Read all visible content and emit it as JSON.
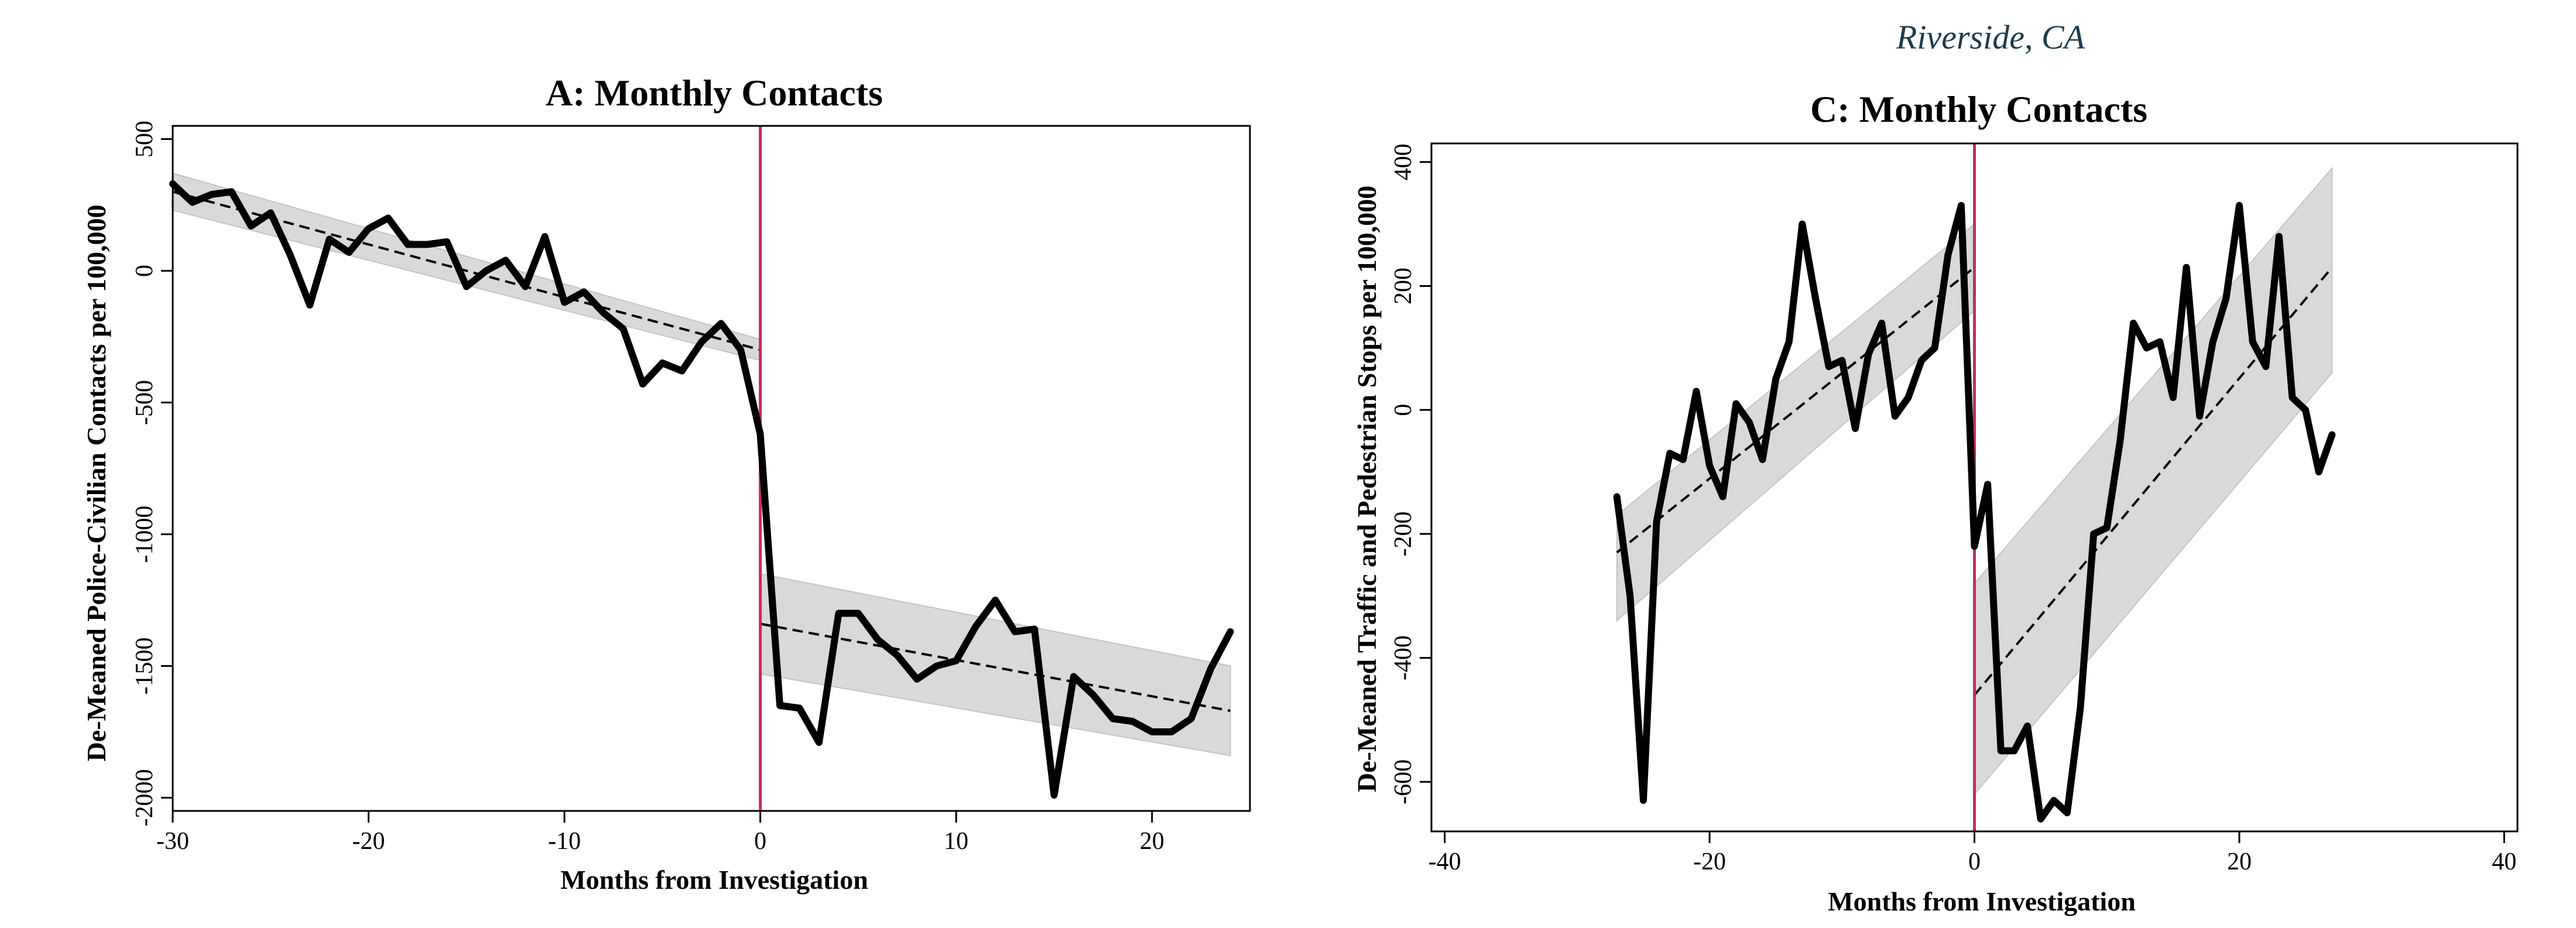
{
  "caption": "Riverside, CA",
  "chart_data": [
    {
      "type": "line",
      "title": "A: Monthly Contacts",
      "xlabel": "Months from Investigation",
      "ylabel": "De-Meaned Police-Civilian Contacts per 100,000",
      "xlim": [
        -30,
        25
      ],
      "ylim": [
        -2050,
        550
      ],
      "xticks": [
        -30,
        -20,
        -10,
        0,
        10,
        20
      ],
      "yticks": [
        500,
        0,
        -500,
        -1000,
        -1500,
        -2000
      ],
      "cutoff_x": 0,
      "colors": {
        "line": "#000000",
        "cutoff": "#c0305a",
        "band": "#d9d9d9"
      },
      "series": [
        {
          "x": [
            -30,
            -29,
            -28,
            -27,
            -26,
            -25,
            -24,
            -23,
            -22,
            -21,
            -20,
            -19,
            -18,
            -17,
            -16,
            -15,
            -14,
            -13,
            -12,
            -11,
            -10,
            -9,
            -8,
            -7,
            -6,
            -5,
            -4,
            -3,
            -2,
            -1,
            0,
            1,
            2,
            3,
            4,
            5,
            6,
            7,
            8,
            9,
            10,
            11,
            12,
            13,
            14,
            15,
            16,
            17,
            18,
            19,
            20,
            21,
            22,
            23,
            24
          ],
          "y": [
            330,
            260,
            290,
            300,
            170,
            220,
            60,
            -130,
            120,
            70,
            160,
            200,
            100,
            100,
            110,
            -60,
            0,
            40,
            -60,
            130,
            -120,
            -80,
            -160,
            -220,
            -430,
            -350,
            -380,
            -270,
            -200,
            -300,
            -620,
            -1650,
            -1660,
            -1790,
            -1300,
            -1300,
            -1400,
            -1460,
            -1550,
            -1500,
            -1480,
            -1350,
            -1250,
            -1370,
            -1360,
            -1990,
            -1540,
            -1610,
            -1700,
            -1710,
            -1750,
            -1750,
            -1700,
            -1510,
            -1370
          ]
        }
      ],
      "fits": [
        {
          "x": [
            -30,
            0
          ],
          "y": [
            300,
            -300
          ],
          "band_upper": [
            370,
            -260
          ],
          "band_lower": [
            230,
            -340
          ]
        },
        {
          "x": [
            0,
            24
          ],
          "y": [
            -1340,
            -1670
          ],
          "band_upper": [
            -1150,
            -1500
          ],
          "band_lower": [
            -1530,
            -1840
          ]
        }
      ]
    },
    {
      "type": "line",
      "title": "C: Monthly Contacts",
      "xlabel": "Months from Investigation",
      "ylabel": "De-Meaned Traffic and Pedestrian Stops per 100,000",
      "xlim": [
        -41,
        41
      ],
      "ylim": [
        -680,
        430
      ],
      "xticks": [
        -40,
        -20,
        0,
        20,
        40
      ],
      "yticks": [
        400,
        200,
        0,
        -200,
        -400,
        -600
      ],
      "cutoff_x": 0,
      "colors": {
        "line": "#000000",
        "cutoff": "#c0305a",
        "band": "#d9d9d9"
      },
      "series": [
        {
          "x": [
            -27,
            -26,
            -25,
            -24,
            -23,
            -22,
            -21,
            -20,
            -19,
            -18,
            -17,
            -16,
            -15,
            -14,
            -13,
            -12,
            -11,
            -10,
            -9,
            -8,
            -7,
            -6,
            -5,
            -4,
            -3,
            -2,
            -1,
            0,
            1,
            2,
            3,
            4,
            5,
            6,
            7,
            8,
            9,
            10,
            11,
            12,
            13,
            14,
            15,
            16,
            17,
            18,
            19,
            20,
            21,
            22,
            23,
            24,
            25,
            26,
            27
          ],
          "y": [
            -140,
            -300,
            -630,
            -180,
            -70,
            -80,
            30,
            -90,
            -140,
            10,
            -20,
            -80,
            50,
            110,
            300,
            180,
            70,
            80,
            -30,
            90,
            140,
            -10,
            20,
            80,
            100,
            250,
            330,
            -220,
            -120,
            -550,
            -550,
            -510,
            -660,
            -630,
            -650,
            -480,
            -200,
            -190,
            -50,
            140,
            100,
            110,
            20,
            230,
            -10,
            110,
            180,
            330,
            110,
            70,
            280,
            20,
            0,
            -100,
            -40
          ]
        }
      ],
      "fits": [
        {
          "x": [
            -27,
            0
          ],
          "y": [
            -230,
            230
          ],
          "band_upper": [
            -170,
            300
          ],
          "band_lower": [
            -340,
            160
          ]
        },
        {
          "x": [
            0,
            27
          ],
          "y": [
            -460,
            230
          ],
          "band_upper": [
            -280,
            390
          ],
          "band_lower": [
            -620,
            60
          ]
        }
      ]
    }
  ]
}
